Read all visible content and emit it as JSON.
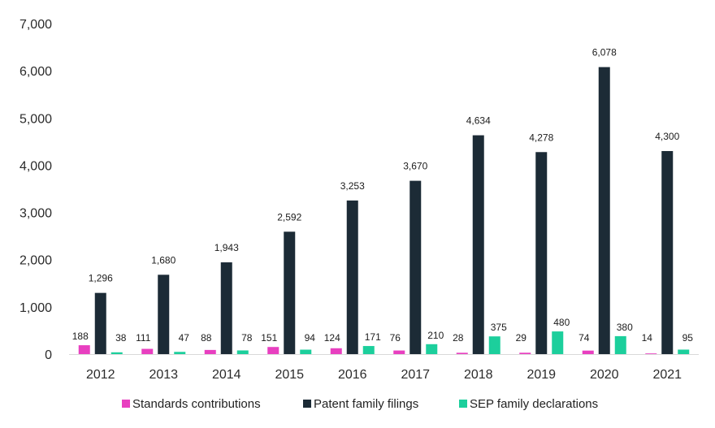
{
  "chart_data": {
    "type": "bar",
    "title": "",
    "xlabel": "",
    "ylabel": "",
    "ylim": [
      0,
      7000
    ],
    "yticks": [
      0,
      1000,
      2000,
      3000,
      4000,
      5000,
      6000,
      7000
    ],
    "ytick_labels": [
      "0",
      "1,000",
      "2,000",
      "3,000",
      "4,000",
      "5,000",
      "6,000",
      "7,000"
    ],
    "grid": false,
    "legend_position": "bottom",
    "categories": [
      "2012",
      "2013",
      "2014",
      "2015",
      "2016",
      "2017",
      "2018",
      "2019",
      "2020",
      "2021"
    ],
    "series": [
      {
        "name": "Standards contributions",
        "color": "#e83fc0",
        "values": [
          188,
          111,
          88,
          151,
          124,
          76,
          28,
          29,
          74,
          14
        ],
        "labels": [
          "188",
          "111",
          "88",
          "151",
          "124",
          "76",
          "28",
          "29",
          "74",
          "14"
        ]
      },
      {
        "name": "Patent family filings",
        "color": "#1c2b36",
        "values": [
          1296,
          1680,
          1943,
          2592,
          3253,
          3670,
          4634,
          4278,
          6078,
          4300
        ],
        "labels": [
          "1,296",
          "1,680",
          "1,943",
          "2,592",
          "3,253",
          "3,670",
          "4,634",
          "4,278",
          "6,078",
          "4,300"
        ]
      },
      {
        "name": "SEP family declarations",
        "color": "#1ccf9c",
        "values": [
          38,
          47,
          78,
          94,
          171,
          210,
          375,
          480,
          380,
          95
        ],
        "labels": [
          "38",
          "47",
          "78",
          "94",
          "171",
          "210",
          "375",
          "480",
          "380",
          "95"
        ]
      }
    ]
  }
}
